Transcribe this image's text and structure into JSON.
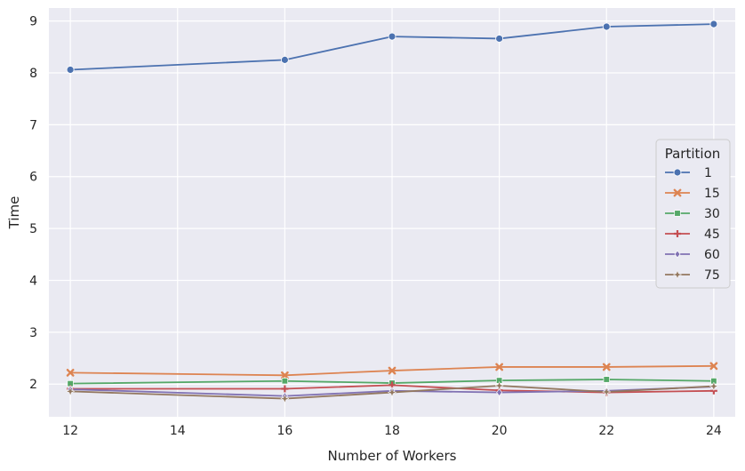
{
  "chart_data": {
    "type": "line",
    "xlabel": "Number of Workers",
    "ylabel": "Time",
    "x": [
      12,
      16,
      18,
      20,
      22,
      24
    ],
    "xlim": [
      11.6,
      24.4
    ],
    "ylim": [
      1.37,
      9.25
    ],
    "xticks": [
      "12",
      "14",
      "16",
      "18",
      "20",
      "22",
      "24"
    ],
    "yticks": [
      "2",
      "3",
      "4",
      "5",
      "6",
      "7",
      "8",
      "9"
    ],
    "grid": true,
    "legend": {
      "title": "Partition",
      "placement": "center-right"
    },
    "series": [
      {
        "name": "1",
        "color": "#4c72b0",
        "marker": "circle",
        "values": [
          8.06,
          8.25,
          8.7,
          8.66,
          8.89,
          8.94
        ]
      },
      {
        "name": "15",
        "color": "#dd8452",
        "marker": "x",
        "values": [
          2.22,
          2.17,
          2.26,
          2.33,
          2.33,
          2.35
        ]
      },
      {
        "name": "30",
        "color": "#55a868",
        "marker": "square",
        "values": [
          2.01,
          2.06,
          2.02,
          2.07,
          2.09,
          2.06
        ]
      },
      {
        "name": "45",
        "color": "#c44e52",
        "marker": "plus",
        "values": [
          1.91,
          1.91,
          1.98,
          1.88,
          1.84,
          1.87
        ]
      },
      {
        "name": "60",
        "color": "#8172b3",
        "marker": "diamond",
        "values": [
          1.9,
          1.77,
          1.87,
          1.84,
          1.87,
          1.95
        ]
      },
      {
        "name": "75",
        "color": "#937860",
        "marker": "star",
        "values": [
          1.86,
          1.72,
          1.84,
          1.97,
          1.85,
          1.96
        ]
      }
    ]
  }
}
